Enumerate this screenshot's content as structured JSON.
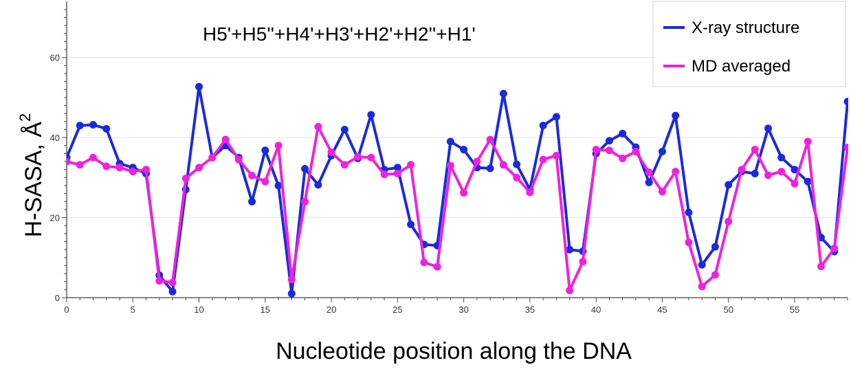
{
  "chart_data": {
    "type": "line",
    "title": "H5'+H5''+H4'+H3'+H2'+H2''+H1'",
    "xlabel": "Nucleotide position along the DNA",
    "ylabel": "H-SASA, Å",
    "ylabel_superscript": "2",
    "xlim": [
      0,
      59
    ],
    "ylim": [
      0,
      73
    ],
    "x_ticks": [
      0,
      5,
      10,
      15,
      20,
      25,
      30,
      35,
      40,
      45,
      50,
      55
    ],
    "y_ticks": [
      0,
      20,
      40,
      60
    ],
    "grid": true,
    "legend_position": "top-right",
    "x": [
      0,
      1,
      2,
      3,
      4,
      5,
      6,
      7,
      8,
      9,
      10,
      11,
      12,
      13,
      14,
      15,
      16,
      17,
      18,
      19,
      20,
      21,
      22,
      23,
      24,
      25,
      26,
      27,
      28,
      29,
      30,
      31,
      32,
      33,
      34,
      35,
      36,
      37,
      38,
      39,
      40,
      41,
      42,
      43,
      44,
      45,
      46,
      47,
      48,
      49,
      50,
      51,
      52,
      53,
      54,
      55,
      56,
      57,
      58,
      59
    ],
    "series": [
      {
        "name": "X-ray structure",
        "color": "#1a2bdc",
        "values": [
          35,
          43,
          43.2,
          42.2,
          33.5,
          32.5,
          31,
          5.6,
          1.5,
          27,
          52.7,
          35,
          38,
          35,
          24,
          36.8,
          28,
          1,
          32.2,
          28.2,
          35.5,
          42,
          34.8,
          45.7,
          32,
          32.5,
          18.3,
          13.3,
          13,
          39,
          37,
          32.5,
          32.3,
          51,
          33.3,
          27,
          43,
          45.2,
          12,
          11.6,
          36,
          39.2,
          41,
          37.6,
          28.8,
          36.5,
          45.5,
          21.3,
          8.2,
          12.7,
          28.2,
          31.5,
          31,
          42.3,
          35,
          32,
          29,
          15,
          11.5,
          49
        ]
      },
      {
        "name": "MD averaged",
        "color": "#ee22dd",
        "values": [
          34,
          33.2,
          35,
          32.8,
          32.5,
          31.5,
          32,
          4.2,
          3.8,
          29.8,
          32.5,
          35,
          39.5,
          34.5,
          30.5,
          29,
          38,
          4.5,
          24,
          42.7,
          36.3,
          33.2,
          35.2,
          35,
          30.8,
          31,
          33.2,
          8.8,
          7.7,
          33,
          26.2,
          34,
          39.5,
          33.2,
          30,
          26.3,
          34.5,
          35.5,
          1.8,
          9,
          37,
          36.8,
          34.8,
          36.5,
          31.3,
          26.5,
          31.5,
          13.8,
          2.8,
          5.7,
          19,
          32,
          37,
          30.6,
          31.5,
          28.5,
          39,
          7.8,
          12.3,
          37.5
        ]
      }
    ]
  }
}
